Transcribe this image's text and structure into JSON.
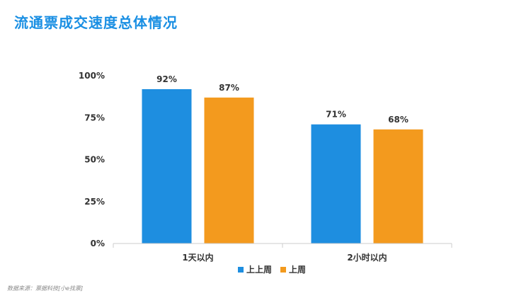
{
  "title": "流通票成交速度总体情况",
  "source": "数据来源：票据科技[小e找票]",
  "colors": {
    "series1": "#1e8ee0",
    "series2": "#f39a1e",
    "axis": "#cccccc",
    "title": "#1a8fe3"
  },
  "chart_data": {
    "type": "bar",
    "categories": [
      "1天以内",
      "2小时以内"
    ],
    "series": [
      {
        "name": "上上周",
        "values": [
          92,
          71
        ],
        "labels": [
          "92%",
          "71%"
        ]
      },
      {
        "name": "上周",
        "values": [
          87,
          68
        ],
        "labels": [
          "87%",
          "68%"
        ]
      }
    ],
    "ylim": [
      0,
      100
    ],
    "yticks": [
      "0%",
      "25%",
      "50%",
      "75%",
      "100%"
    ],
    "ytick_values": [
      0,
      25,
      50,
      75,
      100
    ],
    "legend_position": "bottom",
    "grid": false
  }
}
